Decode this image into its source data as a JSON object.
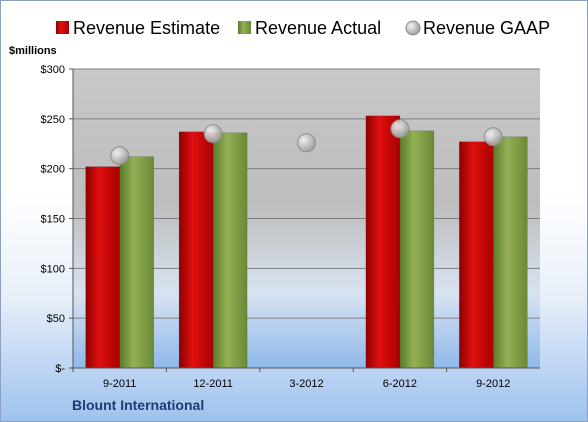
{
  "chart_data": {
    "type": "bar",
    "company": "Blount International",
    "y_unit_label": "$millions",
    "categories": [
      "9-2011",
      "12-2011",
      "3-2012",
      "6-2012",
      "9-2012"
    ],
    "series": [
      {
        "name": "Revenue Estimate",
        "kind": "bar",
        "color": "#c00000",
        "values": [
          202,
          237,
          null,
          253,
          227
        ]
      },
      {
        "name": "Revenue Actual",
        "kind": "bar",
        "color": "#77933c",
        "values": [
          212,
          236,
          null,
          238,
          232
        ]
      },
      {
        "name": "Revenue GAAP",
        "kind": "marker",
        "color": "#b0b0b0",
        "values": [
          213,
          235,
          226,
          240,
          232
        ]
      }
    ],
    "ylim": [
      0,
      300
    ],
    "yticks": [
      0,
      50,
      100,
      150,
      200,
      250,
      300
    ],
    "ytick_labels": [
      "$-",
      "$50",
      "$100",
      "$150",
      "$200",
      "$250",
      "$300"
    ],
    "grid": true,
    "legend_position": "top"
  }
}
